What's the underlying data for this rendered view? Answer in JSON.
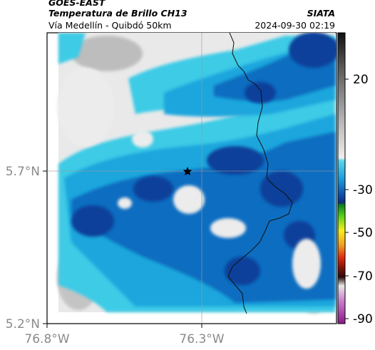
{
  "header": {
    "satellite": "GOES-EAST",
    "product": "Temperatura de Brillo CH13",
    "region": "Vía Medellín - Quibdó 50km",
    "org": "SIATA",
    "timestamp": "2024-09-30 02:19"
  },
  "axes": {
    "x_ticks": [
      "76.8°W",
      "76.3°W"
    ],
    "y_ticks": [
      "5.7°N",
      "5.2°N"
    ],
    "colorbar_ticks": [
      "20",
      "-30",
      "-50",
      "-70",
      "-90"
    ]
  },
  "colors": {
    "cloud_dark": "#07409a",
    "cloud_mid": "#0f6dc0",
    "cloud_light": "#1ea6dd",
    "cloud_cyan": "#3ccbe6",
    "warm": "#e9e9e9"
  },
  "marker": {
    "icon": "star-icon"
  }
}
